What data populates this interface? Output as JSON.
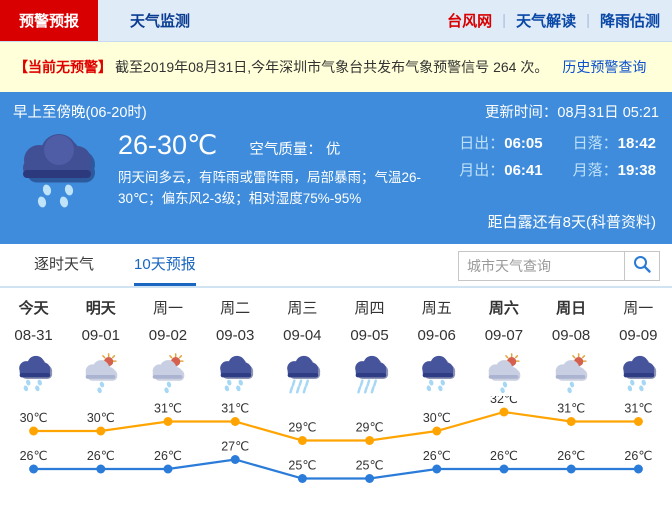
{
  "header": {
    "tabs": [
      {
        "label": "预警预报",
        "active": true
      },
      {
        "label": "天气监测",
        "active": false
      }
    ],
    "links": [
      {
        "label": "台风网",
        "highlight": true
      },
      {
        "label": "天气解读",
        "highlight": false
      },
      {
        "label": "降雨估测",
        "highlight": false
      }
    ]
  },
  "alert": {
    "badge": "【当前无预警】",
    "text": "截至2019年08月31日,今年深圳市气象台共发布气象预警信号 264 次。",
    "link": "历史预警查询"
  },
  "current": {
    "period": "早上至傍晚(06-20时)",
    "updated": "更新时间：08月31日 05:21",
    "temp_range": "26-30℃",
    "air_quality": "空气质量： 优",
    "description": "阴天间多云，有阵雨或雷阵雨，局部暴雨；气温26-30℃；偏东风2-3级；相对湿度75%-95%",
    "sun_moon": [
      {
        "label": "日出：",
        "value": "06:05"
      },
      {
        "label": "日落：",
        "value": "18:42"
      },
      {
        "label": "月出：",
        "value": "06:41"
      },
      {
        "label": "月落：",
        "value": "19:38"
      }
    ],
    "solar_term": "距白露还有8天",
    "solar_term_link": "(科普资料)"
  },
  "tabs": {
    "items": [
      {
        "label": "逐时天气",
        "active": false
      },
      {
        "label": "10天预报",
        "active": true
      }
    ],
    "search_placeholder": "城市天气查询"
  },
  "forecast": {
    "days": [
      {
        "day": "今天",
        "date": "08-31",
        "bold": true,
        "icon": "rain"
      },
      {
        "day": "明天",
        "date": "09-01",
        "bold": true,
        "icon": "sun-shower"
      },
      {
        "day": "周一",
        "date": "09-02",
        "bold": false,
        "icon": "sun-shower"
      },
      {
        "day": "周二",
        "date": "09-03",
        "bold": false,
        "icon": "rain"
      },
      {
        "day": "周三",
        "date": "09-04",
        "bold": false,
        "icon": "heavy-rain"
      },
      {
        "day": "周四",
        "date": "09-05",
        "bold": false,
        "icon": "heavy-rain"
      },
      {
        "day": "周五",
        "date": "09-06",
        "bold": false,
        "icon": "rain"
      },
      {
        "day": "周六",
        "date": "09-07",
        "bold": true,
        "icon": "sun-shower"
      },
      {
        "day": "周日",
        "date": "09-08",
        "bold": true,
        "icon": "sun-shower"
      },
      {
        "day": "周一",
        "date": "09-09",
        "bold": false,
        "icon": "rain"
      }
    ]
  },
  "chart_data": {
    "type": "line",
    "categories": [
      "08-31",
      "09-01",
      "09-02",
      "09-03",
      "09-04",
      "09-05",
      "09-06",
      "09-07",
      "09-08",
      "09-09"
    ],
    "series": [
      {
        "name": "high-temp",
        "color": "#ffa400",
        "values": [
          30,
          30,
          31,
          31,
          29,
          29,
          30,
          32,
          31,
          31
        ]
      },
      {
        "name": "low-temp",
        "color": "#2b7bd9",
        "values": [
          26,
          26,
          26,
          27,
          25,
          25,
          26,
          26,
          26,
          26
        ]
      }
    ],
    "unit": "℃",
    "ylim": [
      24,
      33
    ],
    "grid": false,
    "legend": "none"
  },
  "colors": {
    "accent_red": "#d80000",
    "link_blue": "#0a4fd0",
    "panel_blue": "#3e8cdb",
    "tab_active_blue": "#1a66c0",
    "chart_high": "#ffa400",
    "chart_low": "#2b7bd9"
  }
}
